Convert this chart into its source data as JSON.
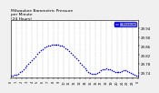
{
  "title": "Milwaukee Barometric Pressure\nper Minute\n(24 Hours)",
  "background_color": "#f0f0f0",
  "plot_bg_color": "#ffffff",
  "dot_color": "#0000ff",
  "dot_size": 1.2,
  "legend_facecolor": "#7777ff",
  "legend_edgecolor": "#0000cc",
  "grid_color": "#bbbbbb",
  "ylim": [
    29.72,
    29.975
  ],
  "xlim": [
    0,
    1440
  ],
  "ytick_values": [
    29.74,
    29.78,
    29.82,
    29.86,
    29.9,
    29.94
  ],
  "ytick_labels": [
    "29.74",
    "29.78",
    "29.82",
    "29.86",
    "29.90",
    "29.94"
  ],
  "xtick_positions": [
    0,
    60,
    120,
    180,
    240,
    300,
    360,
    420,
    480,
    540,
    600,
    660,
    720,
    780,
    840,
    900,
    960,
    1020,
    1080,
    1140,
    1200,
    1260,
    1320,
    1380,
    1440
  ],
  "xtick_labels": [
    "0",
    "1",
    "2",
    "3",
    "4",
    "5",
    "6",
    "7",
    "8",
    "9",
    "10",
    "11",
    "12",
    "13",
    "14",
    "15",
    "16",
    "17",
    "18",
    "19",
    "20",
    "21",
    "22",
    "23",
    "0"
  ],
  "vgrid_positions": [
    60,
    120,
    180,
    240,
    300,
    360,
    420,
    480,
    540,
    600,
    660,
    720,
    780,
    840,
    900,
    960,
    1020,
    1080,
    1140,
    1200,
    1260,
    1320,
    1380
  ],
  "data_x": [
    0,
    20,
    40,
    60,
    80,
    100,
    120,
    140,
    160,
    180,
    200,
    220,
    240,
    260,
    280,
    300,
    320,
    340,
    360,
    380,
    400,
    420,
    440,
    460,
    480,
    500,
    520,
    540,
    560,
    580,
    600,
    620,
    640,
    660,
    680,
    700,
    720,
    740,
    760,
    780,
    800,
    820,
    840,
    860,
    880,
    900,
    920,
    940,
    960,
    980,
    1000,
    1020,
    1040,
    1060,
    1080,
    1100,
    1120,
    1140,
    1160,
    1180,
    1200,
    1220,
    1240,
    1260,
    1280,
    1300,
    1320,
    1340,
    1360,
    1380,
    1400,
    1420,
    1440
  ],
  "data_y": [
    29.726,
    29.728,
    29.73,
    29.733,
    29.737,
    29.742,
    29.748,
    29.755,
    29.762,
    29.77,
    29.778,
    29.787,
    29.796,
    29.805,
    29.814,
    29.823,
    29.832,
    29.84,
    29.847,
    29.853,
    29.857,
    29.86,
    29.862,
    29.864,
    29.865,
    29.866,
    29.866,
    29.865,
    29.863,
    29.86,
    29.856,
    29.851,
    29.845,
    29.838,
    29.83,
    29.822,
    29.813,
    29.804,
    29.795,
    29.786,
    29.777,
    29.768,
    29.759,
    29.751,
    29.744,
    29.739,
    29.736,
    29.735,
    29.737,
    29.74,
    29.745,
    29.75,
    29.754,
    29.757,
    29.758,
    29.757,
    29.754,
    29.75,
    29.746,
    29.743,
    29.742,
    29.743,
    29.745,
    29.748,
    29.75,
    29.75,
    29.748,
    29.745,
    29.741,
    29.737,
    29.733,
    29.729,
    29.726
  ]
}
